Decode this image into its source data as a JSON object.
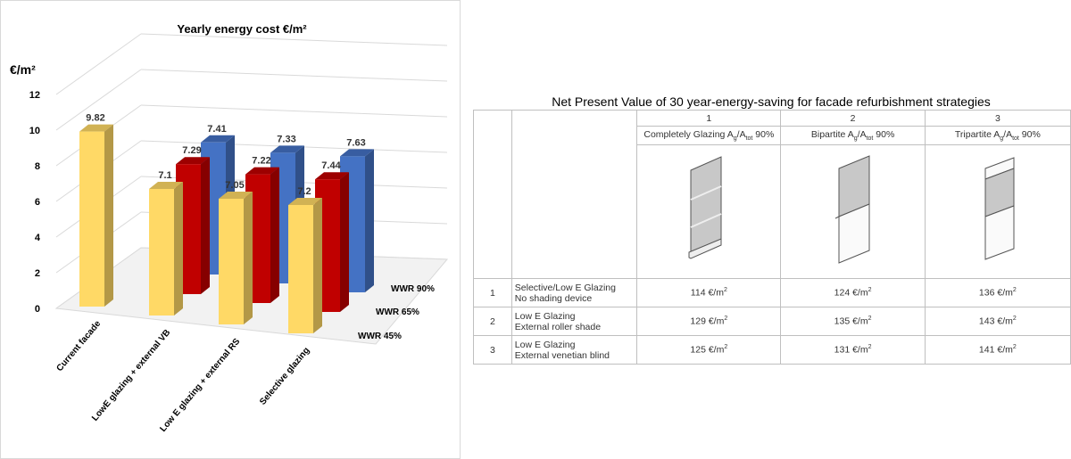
{
  "chart_data": {
    "type": "bar",
    "title": "Yearly energy cost €/m²",
    "ylabel": "€/m²",
    "ylim": [
      0,
      12
    ],
    "yticks": [
      0,
      2,
      4,
      6,
      8,
      10,
      12
    ],
    "categories": [
      "Current facade",
      "LowE glazing + external VB",
      "Low E glazing + external RS",
      "Selective glazing"
    ],
    "series": [
      {
        "name": "WWR 45%",
        "color": "#FFD966",
        "values": [
          9.82,
          7.1,
          7.05,
          7.2
        ]
      },
      {
        "name": "WWR 65%",
        "color": "#C00000",
        "values": [
          null,
          7.29,
          7.22,
          7.44
        ]
      },
      {
        "name": "WWR 90%",
        "color": "#4472C4",
        "values": [
          null,
          7.41,
          7.33,
          7.63
        ]
      }
    ],
    "data_labels": [
      [
        "9.82",
        "7.1",
        "7.05",
        "7.2"
      ],
      [
        null,
        "7.29",
        "7.22",
        "7.44"
      ],
      [
        null,
        "7.41",
        "7.33",
        "7.63"
      ]
    ]
  },
  "table": {
    "title": "Net Present Value of 30 year-energy-saving for facade refurbishment strategies",
    "columns": [
      {
        "num": "1",
        "name": "Completely Glazing A",
        "sub1": "g",
        "mid": "/A",
        "sub2": "tot",
        "suffix": " 90%"
      },
      {
        "num": "2",
        "name": "Bipartite A",
        "sub1": "g",
        "mid": "/A",
        "sub2": "tot",
        "suffix": " 90%"
      },
      {
        "num": "3",
        "name": "Tripartite A",
        "sub1": "g",
        "mid": "/A",
        "sub2": "tot",
        "suffix": " 90%"
      }
    ],
    "rows": [
      {
        "num": "1",
        "line1": "Selective/Low E Glazing",
        "line2": "No shading device",
        "values": [
          "114 €/m",
          "124 €/m",
          "136 €/m"
        ]
      },
      {
        "num": "2",
        "line1": "Low E Glazing",
        "line2": "External roller shade",
        "values": [
          "129 €/m",
          "135 €/m",
          "143 €/m"
        ]
      },
      {
        "num": "3",
        "line1": "Low E Glazing",
        "line2": "External venetian blind",
        "values": [
          "125 €/m",
          "131 €/m",
          "141 €/m"
        ]
      }
    ],
    "unit_sup": "2"
  }
}
